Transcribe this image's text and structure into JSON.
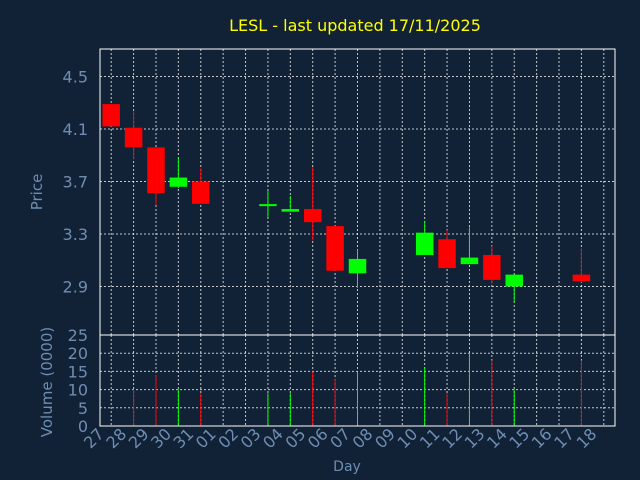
{
  "colors": {
    "background": "#112236",
    "title": "#ffff00",
    "axis_text": "#6f8db2",
    "grid": "#ffffff",
    "up": "#00ff00",
    "down": "#ff0000"
  },
  "chart_data": [
    {
      "type": "candlestick",
      "title": "LESL - last updated 17/11/2025",
      "ylabel": "Price",
      "ylim": [
        2.53,
        4.71
      ],
      "yticks": [
        "4.5",
        "4.1",
        "3.7",
        "3.3",
        "2.9"
      ],
      "yticks_values": [
        4.5,
        4.1,
        3.7,
        3.3,
        2.9
      ],
      "grid": true,
      "days": [
        "27",
        "28",
        "29",
        "30",
        "31",
        "01",
        "02",
        "03",
        "04",
        "05",
        "06",
        "07",
        "08",
        "09",
        "10",
        "11",
        "12",
        "13",
        "14",
        "15",
        "16",
        "17",
        "18"
      ],
      "candles": [
        {
          "day": "27",
          "open": 4.29,
          "close": 4.12,
          "high": 4.29,
          "low": 4.12
        },
        {
          "day": "28",
          "open": 4.11,
          "close": 3.96,
          "high": 4.24,
          "low": 3.87
        },
        {
          "day": "29",
          "open": 3.96,
          "close": 3.61,
          "high": 3.96,
          "low": 3.52
        },
        {
          "day": "30",
          "open": 3.66,
          "close": 3.73,
          "high": 3.88,
          "low": 3.65
        },
        {
          "day": "31",
          "open": 3.7,
          "close": 3.53,
          "high": 3.8,
          "low": 3.53
        },
        {
          "day": "03",
          "open": 3.52,
          "close": 3.52,
          "high": 3.63,
          "low": 3.43
        },
        {
          "day": "04",
          "open": 3.47,
          "close": 3.49,
          "high": 3.59,
          "low": 3.47
        },
        {
          "day": "05",
          "open": 3.49,
          "close": 3.39,
          "high": 3.81,
          "low": 3.25
        },
        {
          "day": "06",
          "open": 3.36,
          "close": 3.02,
          "high": 3.36,
          "low": 3.02
        },
        {
          "day": "07",
          "open": 3.0,
          "close": 3.11,
          "high": 3.18,
          "low": 2.89
        },
        {
          "day": "10",
          "open": 3.14,
          "close": 3.31,
          "high": 3.4,
          "low": 3.14
        },
        {
          "day": "11",
          "open": 3.26,
          "close": 3.04,
          "high": 3.33,
          "low": 3.04
        },
        {
          "day": "12",
          "open": 3.07,
          "close": 3.12,
          "high": 3.35,
          "low": 3.07
        },
        {
          "day": "13",
          "open": 3.14,
          "close": 2.95,
          "high": 3.21,
          "low": 2.92
        },
        {
          "day": "14",
          "open": 2.9,
          "close": 2.99,
          "high": 2.99,
          "low": 2.78
        },
        {
          "day": "17",
          "open": 2.99,
          "close": 2.94,
          "high": 3.19,
          "low": 2.93
        }
      ]
    },
    {
      "type": "bar",
      "ylabel": "Volume (0000)",
      "xlabel": "Day",
      "ylim": [
        0,
        25
      ],
      "yticks": [
        "25",
        "20",
        "15",
        "10",
        "5",
        "0"
      ],
      "yticks_values": [
        25,
        20,
        15,
        10,
        5,
        0
      ],
      "grid": true,
      "bars": [
        {
          "day": "28",
          "value": 10,
          "direction": "down"
        },
        {
          "day": "29",
          "value": 14,
          "direction": "down"
        },
        {
          "day": "30",
          "value": 10,
          "direction": "up"
        },
        {
          "day": "31",
          "value": 9,
          "direction": "down"
        },
        {
          "day": "03",
          "value": 9,
          "direction": "up"
        },
        {
          "day": "04",
          "value": 9,
          "direction": "up"
        },
        {
          "day": "05",
          "value": 15,
          "direction": "down"
        },
        {
          "day": "06",
          "value": 13,
          "direction": "down"
        },
        {
          "day": "07",
          "value": 15,
          "direction": "up"
        },
        {
          "day": "10",
          "value": 16,
          "direction": "up"
        },
        {
          "day": "11",
          "value": 9,
          "direction": "down"
        },
        {
          "day": "12",
          "value": 20,
          "direction": "up"
        },
        {
          "day": "13",
          "value": 18,
          "direction": "down"
        },
        {
          "day": "14",
          "value": 10,
          "direction": "up"
        },
        {
          "day": "17",
          "value": 18,
          "direction": "down"
        }
      ]
    }
  ]
}
